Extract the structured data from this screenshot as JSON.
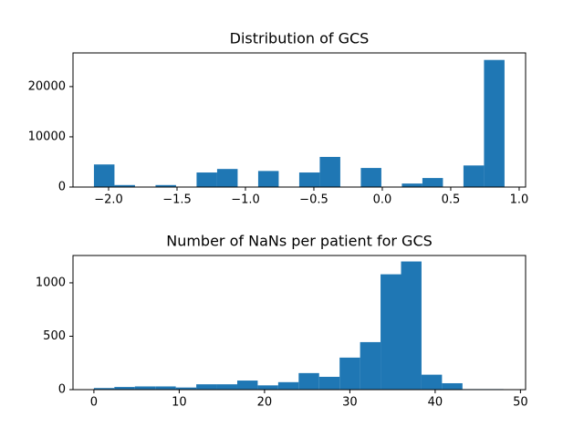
{
  "chart_data": [
    {
      "type": "histogram",
      "title": "Distribution of GCS",
      "color": "#1f77b4",
      "bins": [
        -2.107,
        -1.957,
        -1.807,
        -1.657,
        -1.507,
        -1.357,
        -1.207,
        -1.057,
        -0.907,
        -0.757,
        -0.607,
        -0.457,
        -0.307,
        -0.157,
        -0.007,
        0.143,
        0.293,
        0.443,
        0.593,
        0.743,
        0.893
      ],
      "values": [
        4500,
        400,
        0,
        400,
        0,
        2900,
        3600,
        0,
        3200,
        0,
        2900,
        6000,
        0,
        3800,
        0,
        700,
        1800,
        0,
        4300,
        25300
      ],
      "xlim": [
        -2.26,
        1.047
      ],
      "ylim": [
        0,
        26700
      ],
      "xticks": [
        {
          "value": -2.0,
          "label": "−2.0"
        },
        {
          "value": -1.5,
          "label": "−1.5"
        },
        {
          "value": -1.0,
          "label": "−1.0"
        },
        {
          "value": -0.5,
          "label": "−0.5"
        },
        {
          "value": 0.0,
          "label": "0.0"
        },
        0.5,
        {
          "value": 1.0,
          "label": "1.0"
        }
      ],
      "yticks": [
        0,
        10000,
        20000
      ]
    },
    {
      "type": "histogram",
      "title": "Number of NaNs per patient for GCS",
      "color": "#1f77b4",
      "bins": [
        0,
        2.4,
        4.8,
        7.2,
        9.6,
        12,
        14.4,
        16.8,
        19.2,
        21.6,
        24,
        26.4,
        28.8,
        31.2,
        33.6,
        36,
        38.4,
        40.8,
        43.2,
        45.6,
        48
      ],
      "values": [
        15,
        25,
        30,
        30,
        20,
        50,
        50,
        85,
        40,
        70,
        155,
        120,
        300,
        445,
        1080,
        1200,
        140,
        60,
        5,
        5
      ],
      "xlim": [
        -2.45,
        50.6
      ],
      "ylim": [
        0,
        1256
      ],
      "xticks": [
        0,
        10,
        20,
        30,
        40,
        50
      ],
      "yticks": [
        0,
        500,
        1000
      ]
    }
  ]
}
